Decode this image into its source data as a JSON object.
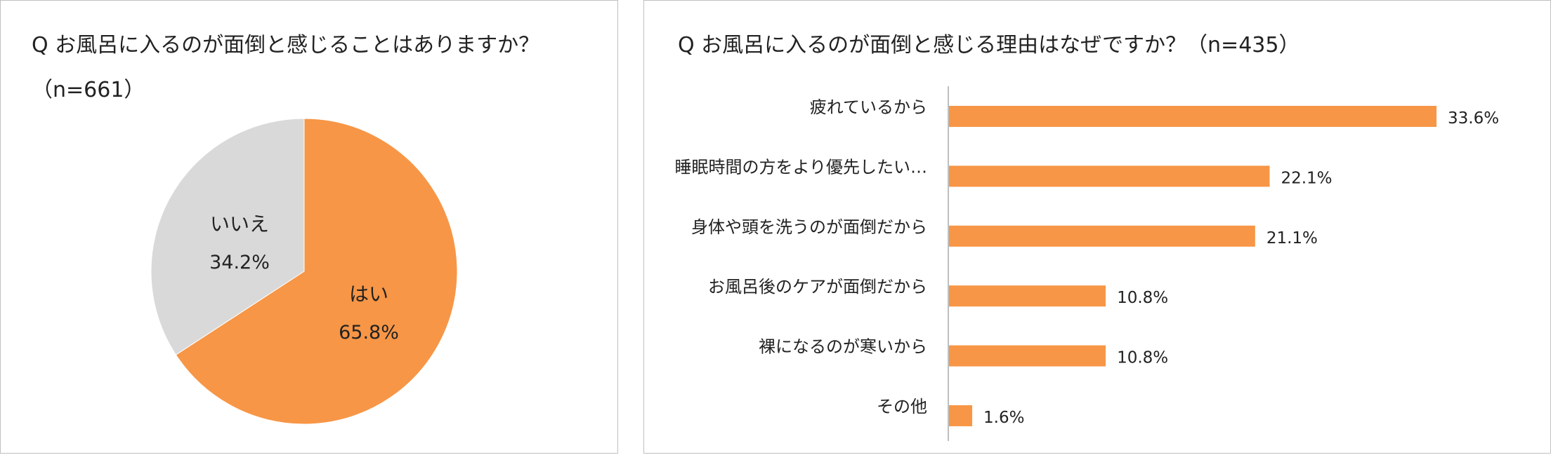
{
  "colors": {
    "accent": "#f79646",
    "muted": "#d9d9d9",
    "axis": "#bfbfbf"
  },
  "left": {
    "title": "Q お風呂に入るのが面倒と感じることはありますか？",
    "n_label": "（n=661）"
  },
  "right": {
    "title": "Q お風呂に入るのが面倒と感じる理由はなぜですか？（n=435）"
  },
  "chart_data": [
    {
      "type": "pie",
      "title": "Q お風呂に入るのが面倒と感じることはありますか？",
      "subtitle": "（n=661）",
      "slices": [
        {
          "label": "はい",
          "value": 65.8,
          "display": "65.8%",
          "color": "#f79646"
        },
        {
          "label": "いいえ",
          "value": 34.2,
          "display": "34.2%",
          "color": "#d9d9d9"
        }
      ]
    },
    {
      "type": "bar",
      "orientation": "horizontal",
      "title": "Q お風呂に入るのが面倒と感じる理由はなぜですか？（n=435）",
      "categories": [
        "疲れているから",
        "睡眠時間の方をより優先したい…",
        "身体や頭を洗うのが面倒だから",
        "お風呂後のケアが面倒だから",
        "裸になるのが寒いから",
        "その他"
      ],
      "values": [
        33.6,
        22.1,
        21.1,
        10.8,
        10.8,
        1.6
      ],
      "value_labels": [
        "33.6%",
        "22.1%",
        "21.1%",
        "10.8%",
        "10.8%",
        "1.6%"
      ],
      "xlim": [
        0,
        40
      ],
      "grid": false,
      "color": "#f79646"
    }
  ]
}
